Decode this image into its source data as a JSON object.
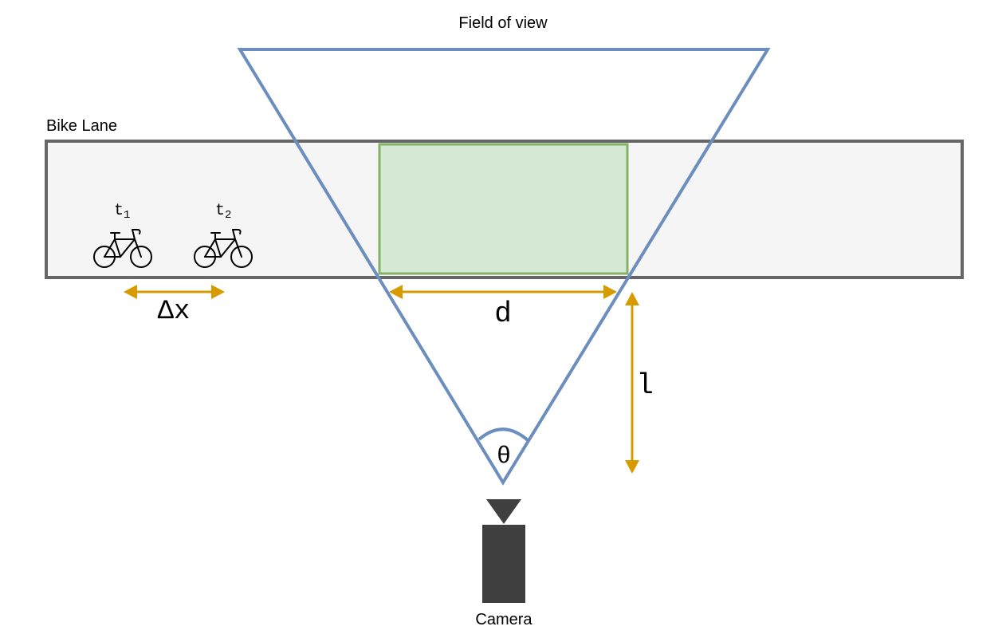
{
  "labels": {
    "field_of_view": "Field of view",
    "bike_lane": "Bike Lane",
    "camera": "Camera",
    "t1_base": "t",
    "t1_sub": "1",
    "t2_base": "t",
    "t2_sub": "2",
    "delta_x": "Δx",
    "d": "d",
    "l": "l",
    "theta": "θ"
  },
  "colors": {
    "fov_outline": "#6c8ebf",
    "lane_fill": "#f5f5f5",
    "lane_stroke": "#666666",
    "region_fill": "#d5e8d4",
    "region_stroke": "#82b366",
    "arrow": "#d79b00",
    "camera": "#3f3f3f"
  },
  "icons": {
    "bike": "bicycle-icon",
    "camera": "camera-icon"
  }
}
